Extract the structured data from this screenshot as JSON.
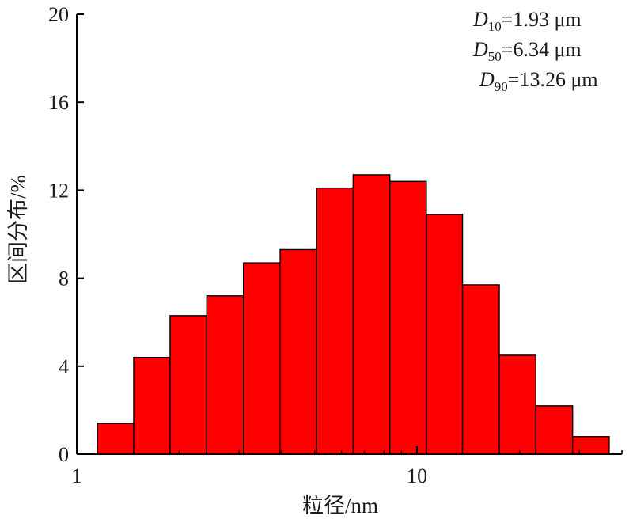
{
  "chart_data": {
    "type": "bar",
    "x_scale": "log",
    "xlabel": "粒径/nm",
    "ylabel": "区间分布/%",
    "ylim": [
      0,
      20
    ],
    "xlim": [
      1,
      40
    ],
    "x_ticks": [
      {
        "value": 1,
        "label": "1"
      },
      {
        "value": 10,
        "label": "10"
      }
    ],
    "y_ticks": [
      {
        "value": 0,
        "label": "0"
      },
      {
        "value": 4,
        "label": "4"
      },
      {
        "value": 8,
        "label": "8"
      },
      {
        "value": 12,
        "label": "12"
      },
      {
        "value": 16,
        "label": "16"
      },
      {
        "value": 20,
        "label": "20"
      }
    ],
    "bin_edges": [
      1.15,
      1.47,
      1.88,
      2.41,
      3.09,
      3.96,
      5.07,
      6.49,
      8.32,
      10.65,
      13.6,
      17.45,
      22.35,
      28.65,
      36.7
    ],
    "values": [
      1.4,
      4.4,
      6.3,
      7.2,
      8.7,
      9.3,
      12.1,
      12.7,
      12.4,
      10.9,
      7.7,
      4.5,
      2.2,
      0.8,
      0.1
    ],
    "bar_color": "#ff0000",
    "grid": false,
    "annotations": [
      {
        "symbol": "D",
        "sub": "10",
        "text": "=1.93 μm"
      },
      {
        "symbol": "D",
        "sub": "50",
        "text": "=6.34 μm"
      },
      {
        "symbol": "D",
        "sub": "90",
        "text": "=13.26 μm"
      }
    ]
  }
}
